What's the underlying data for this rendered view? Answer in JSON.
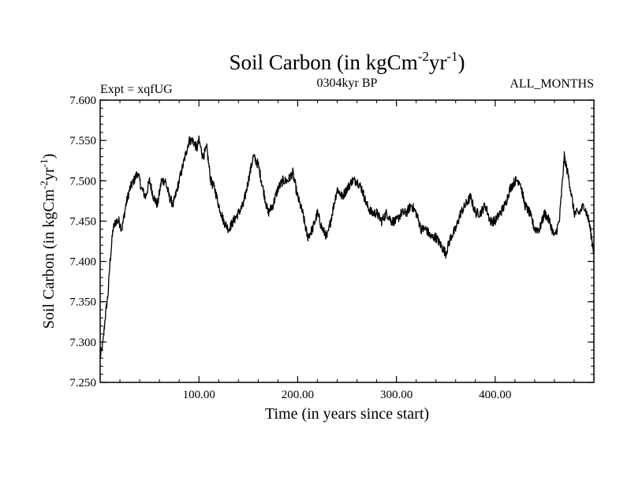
{
  "chart_data": {
    "type": "line",
    "title": {
      "base": "Soil Carbon (in kgCm",
      "sup1": "-2",
      "mid": "yr",
      "sup2": "-1",
      "end": ")"
    },
    "subtitle_left": "Expt = xqfUG",
    "subtitle_center": "0304kyr BP",
    "subtitle_right": "ALL_MONTHS",
    "xlabel": "Time (in years since start)",
    "ylabel": {
      "base": "Soil Carbon (in kgCm",
      "sup1": "-2",
      "mid": "yr",
      "sup2": "-1",
      "end": ")"
    },
    "xlim": [
      0,
      500
    ],
    "ylim": [
      7.25,
      7.6
    ],
    "x_ticks": [
      100,
      200,
      300,
      400
    ],
    "x_tick_labels": [
      "100.00",
      "200.00",
      "300.00",
      "400.00"
    ],
    "y_ticks": [
      7.25,
      7.3,
      7.35,
      7.4,
      7.45,
      7.5,
      7.55,
      7.6
    ],
    "y_tick_labels": [
      "7.250",
      "7.300",
      "7.350",
      "7.400",
      "7.450",
      "7.500",
      "7.550",
      "7.600"
    ],
    "grid": false,
    "series": [
      {
        "name": "Soil Carbon",
        "color": "#000000",
        "x": [
          0,
          3,
          5,
          8,
          10,
          13,
          16,
          19,
          22,
          26,
          30,
          34,
          38,
          42,
          46,
          50,
          54,
          58,
          62,
          66,
          70,
          74,
          78,
          82,
          86,
          90,
          94,
          98,
          100,
          104,
          108,
          112,
          116,
          120,
          125,
          130,
          135,
          140,
          145,
          150,
          155,
          160,
          165,
          170,
          175,
          180,
          185,
          190,
          195,
          200,
          205,
          210,
          215,
          220,
          225,
          230,
          235,
          240,
          245,
          250,
          255,
          260,
          265,
          270,
          275,
          280,
          285,
          290,
          295,
          300,
          305,
          310,
          315,
          320,
          325,
          330,
          335,
          340,
          345,
          350,
          355,
          360,
          365,
          370,
          375,
          380,
          385,
          390,
          395,
          400,
          405,
          410,
          415,
          420,
          425,
          430,
          435,
          440,
          445,
          450,
          455,
          460,
          465,
          470,
          475,
          480,
          485,
          490,
          495,
          500
        ],
        "y": [
          7.28,
          7.3,
          7.33,
          7.36,
          7.4,
          7.44,
          7.45,
          7.45,
          7.44,
          7.47,
          7.49,
          7.5,
          7.51,
          7.49,
          7.48,
          7.5,
          7.48,
          7.47,
          7.5,
          7.5,
          7.48,
          7.47,
          7.49,
          7.51,
          7.53,
          7.55,
          7.55,
          7.54,
          7.55,
          7.53,
          7.54,
          7.5,
          7.49,
          7.47,
          7.45,
          7.44,
          7.45,
          7.46,
          7.47,
          7.5,
          7.53,
          7.52,
          7.49,
          7.46,
          7.47,
          7.49,
          7.5,
          7.5,
          7.51,
          7.48,
          7.46,
          7.43,
          7.44,
          7.46,
          7.44,
          7.43,
          7.46,
          7.49,
          7.48,
          7.49,
          7.5,
          7.5,
          7.49,
          7.47,
          7.46,
          7.46,
          7.45,
          7.46,
          7.45,
          7.45,
          7.46,
          7.46,
          7.47,
          7.46,
          7.44,
          7.44,
          7.43,
          7.43,
          7.42,
          7.41,
          7.43,
          7.44,
          7.46,
          7.47,
          7.48,
          7.46,
          7.46,
          7.47,
          7.45,
          7.45,
          7.46,
          7.47,
          7.49,
          7.5,
          7.5,
          7.47,
          7.46,
          7.44,
          7.44,
          7.46,
          7.45,
          7.43,
          7.45,
          7.53,
          7.5,
          7.46,
          7.46,
          7.47,
          7.45,
          7.41
        ]
      }
    ]
  }
}
